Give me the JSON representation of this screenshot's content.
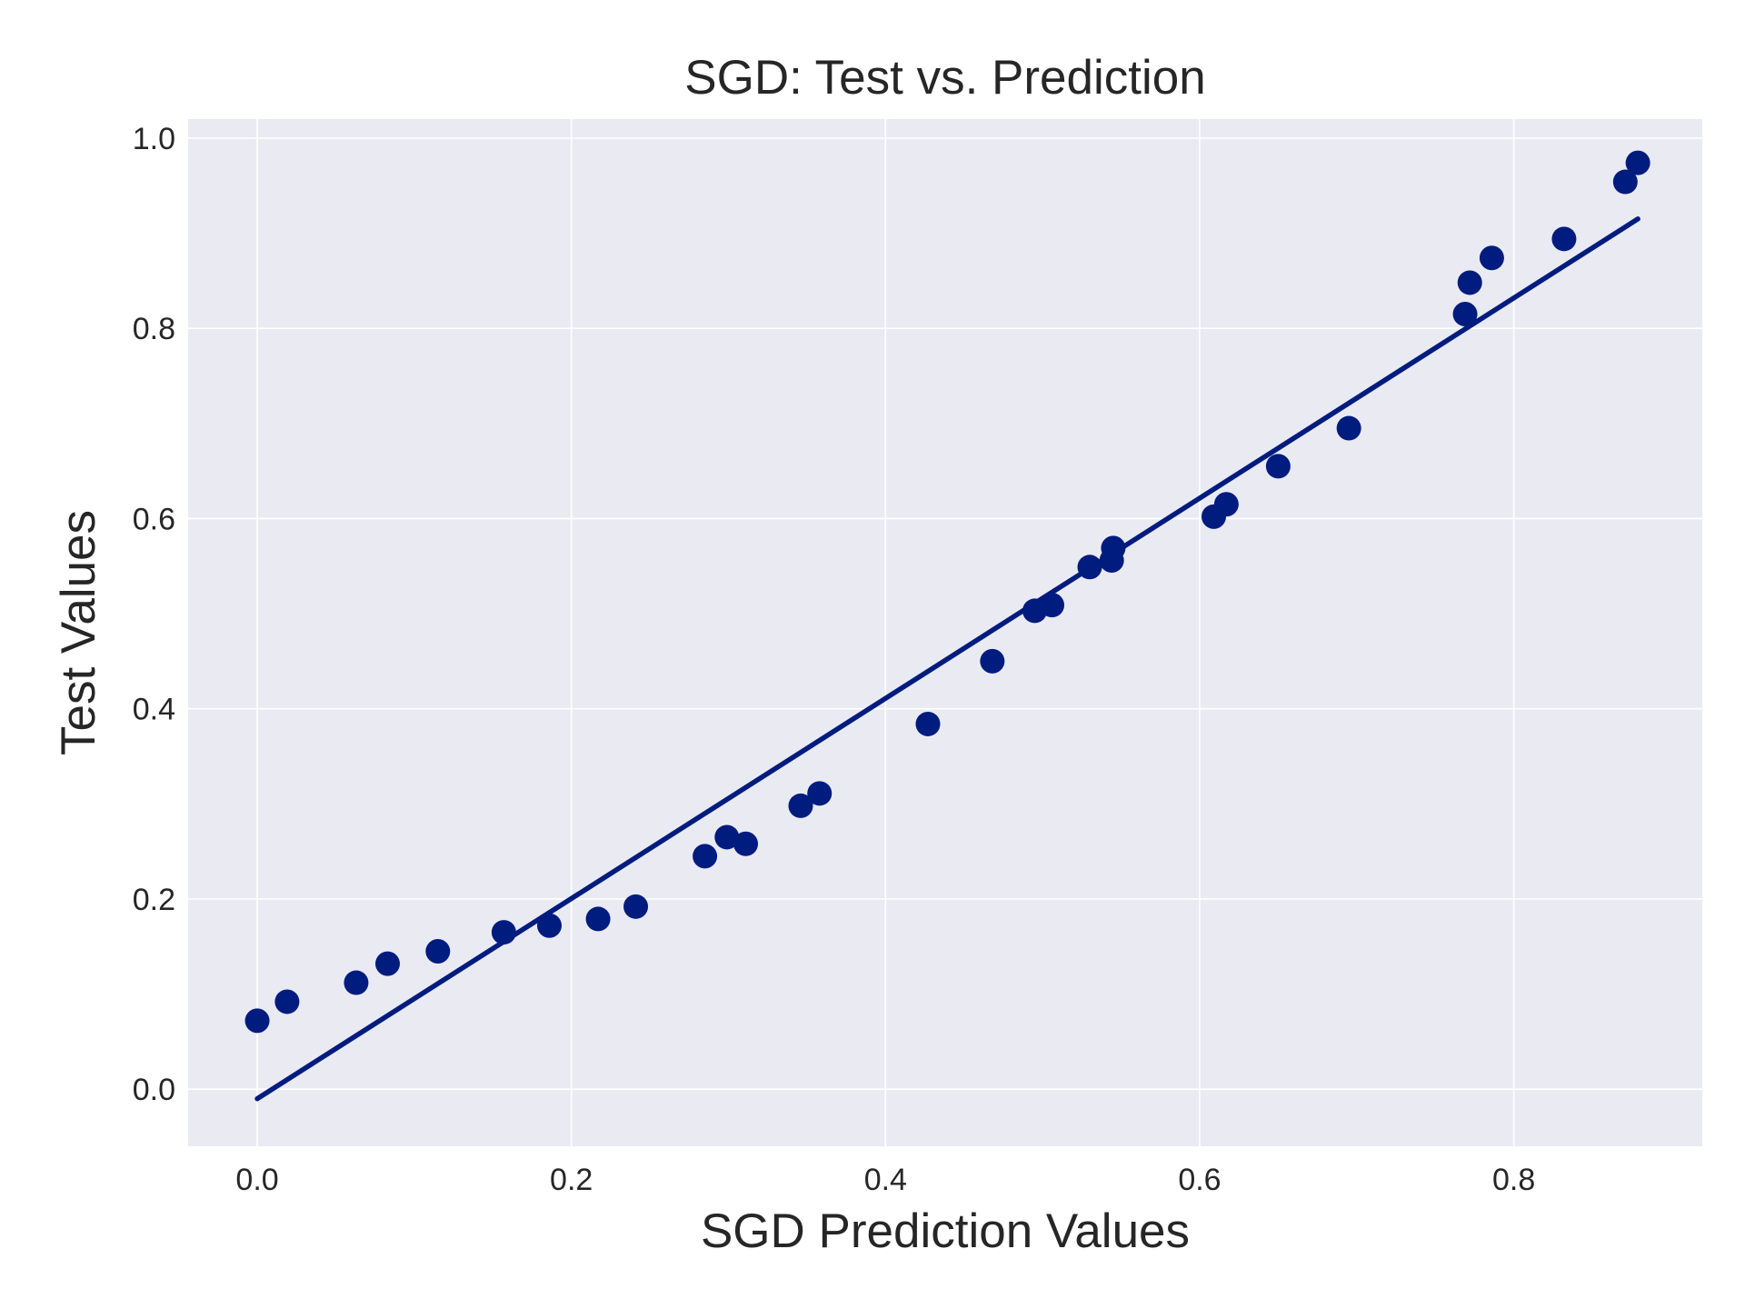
{
  "chart_data": {
    "type": "scatter",
    "title": "SGD: Test vs. Prediction",
    "xlabel": "SGD Prediction Values",
    "ylabel": "Test Values",
    "xlim": [
      -0.044,
      0.92
    ],
    "ylim": [
      -0.06,
      1.02
    ],
    "xticks": [
      "0.0",
      "0.2",
      "0.4",
      "0.6",
      "0.8"
    ],
    "yticks": [
      "0.0",
      "0.2",
      "0.4",
      "0.6",
      "0.8",
      "1.0"
    ],
    "xtick_values": [
      0.0,
      0.2,
      0.4,
      0.6,
      0.8
    ],
    "ytick_values": [
      0.0,
      0.2,
      0.4,
      0.6,
      0.8,
      1.0
    ],
    "grid": true,
    "color": "#001c7f",
    "background": "#eaeaf2",
    "points": {
      "x": [
        0.0,
        0.019,
        0.063,
        0.083,
        0.115,
        0.157,
        0.186,
        0.217,
        0.241,
        0.285,
        0.299,
        0.311,
        0.346,
        0.358,
        0.427,
        0.468,
        0.495,
        0.506,
        0.53,
        0.544,
        0.545,
        0.609,
        0.617,
        0.65,
        0.695,
        0.769,
        0.772,
        0.786,
        0.832,
        0.871,
        0.879
      ],
      "y": [
        0.072,
        0.092,
        0.112,
        0.132,
        0.145,
        0.165,
        0.172,
        0.179,
        0.192,
        0.245,
        0.265,
        0.258,
        0.298,
        0.311,
        0.384,
        0.45,
        0.503,
        0.509,
        0.549,
        0.556,
        0.569,
        0.602,
        0.615,
        0.655,
        0.695,
        0.815,
        0.848,
        0.874,
        0.894,
        0.954,
        0.974
      ]
    },
    "fit_line": {
      "x": [
        0.0,
        0.879
      ],
      "y": [
        -0.01,
        0.915
      ]
    }
  }
}
